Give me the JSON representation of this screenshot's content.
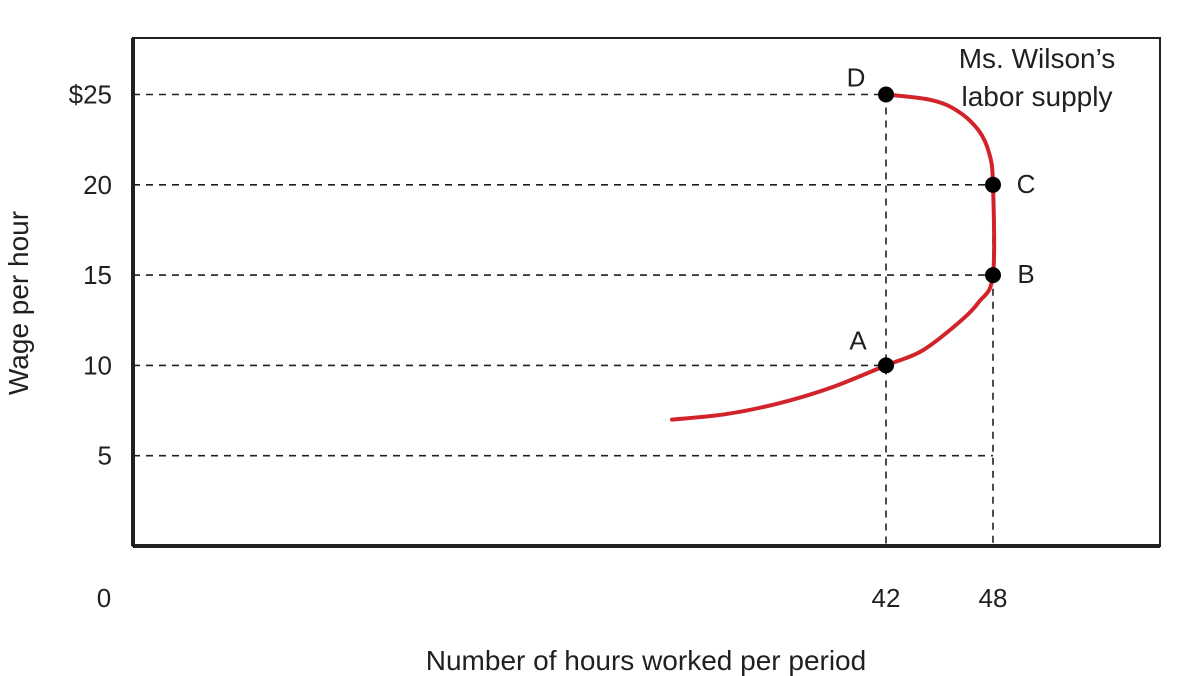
{
  "chart_data": {
    "type": "line",
    "title": "",
    "xlabel": "Number of hours worked per period",
    "ylabel": "Wage per hour",
    "origin_label": "0",
    "x_ticks": [
      {
        "value": 42,
        "label": "42"
      },
      {
        "value": 48,
        "label": "48"
      }
    ],
    "y_ticks": [
      {
        "value": 5,
        "label": "5"
      },
      {
        "value": 10,
        "label": "10"
      },
      {
        "value": 15,
        "label": "15"
      },
      {
        "value": 20,
        "label": "20"
      },
      {
        "value": 25,
        "label": "$25"
      }
    ],
    "series": [
      {
        "name": "Ms. Wilson’s labor supply",
        "color": "#d2232a",
        "x": [
          30,
          33,
          36,
          39,
          42,
          44,
          46,
          47.2,
          48,
          48,
          47.8,
          47.2,
          46,
          44.5,
          42
        ],
        "y": [
          7,
          7.3,
          7.9,
          8.8,
          10,
          10.8,
          12.3,
          13.5,
          15,
          20,
          21.7,
          23,
          24.1,
          24.7,
          25
        ]
      }
    ],
    "points": [
      {
        "label": "A",
        "x": 42,
        "y": 10
      },
      {
        "label": "B",
        "x": 48,
        "y": 15
      },
      {
        "label": "C",
        "x": 48,
        "y": 20
      },
      {
        "label": "D",
        "x": 42,
        "y": 25
      }
    ],
    "curve_label_lines": [
      "Ms. Wilson’s",
      "labor supply"
    ],
    "grid": "dashed guide lines from points to axes"
  }
}
